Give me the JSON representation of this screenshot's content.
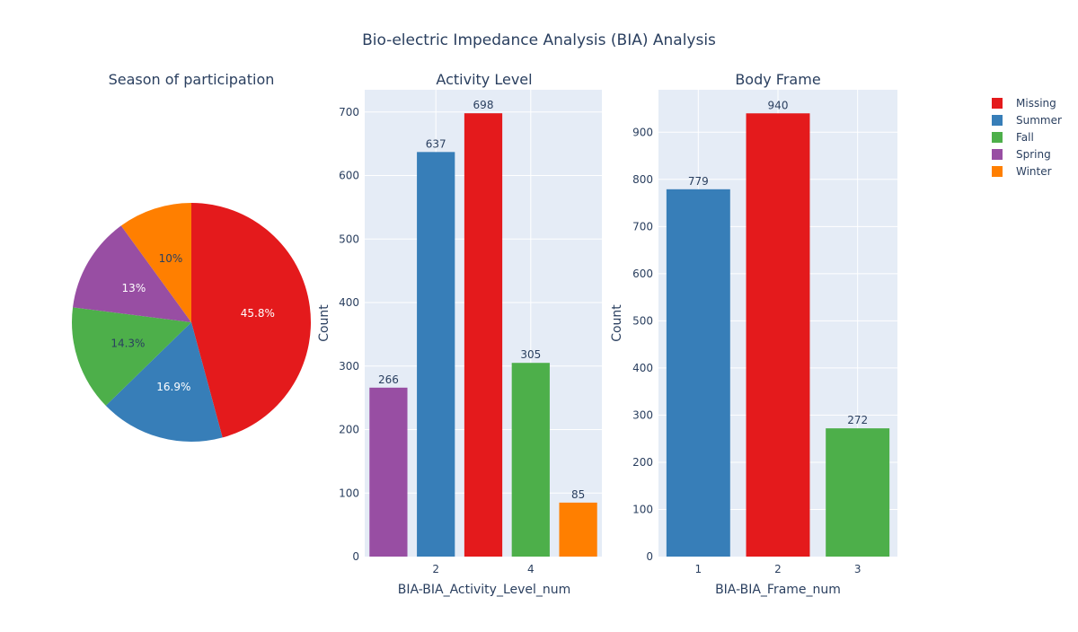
{
  "title": "Bio-electric Impedance Analysis (BIA) Analysis",
  "colors": {
    "Missing": "#e41a1c",
    "Summer": "#377eb8",
    "Fall": "#4daf4a",
    "Spring": "#984ea3",
    "Winter": "#ff7f00",
    "plot_bg": "#e5ecf6",
    "text": "#2a3f5f"
  },
  "legend": {
    "placement": "top-right",
    "items": [
      "Missing",
      "Summer",
      "Fall",
      "Spring",
      "Winter"
    ]
  },
  "chart_data": [
    {
      "type": "pie",
      "title": "Season of participation",
      "labels": [
        "Missing",
        "Summer",
        "Fall",
        "Spring",
        "Winter"
      ],
      "percents": [
        45.8,
        16.9,
        14.3,
        13,
        10
      ],
      "slice_labels": [
        "45.8%",
        "16.9%",
        "14.3%",
        "13%",
        "10%"
      ]
    },
    {
      "type": "bar",
      "title": "Activity Level",
      "xlabel": "BIA-BIA_Activity_Level_num",
      "ylabel": "Count",
      "x": [
        1,
        2,
        3,
        4,
        5
      ],
      "values": [
        266,
        637,
        698,
        305,
        85
      ],
      "series": [
        "Spring",
        "Summer",
        "Missing",
        "Fall",
        "Winter"
      ],
      "x_ticks": [
        2,
        4
      ],
      "y_ticks": [
        0,
        100,
        200,
        300,
        400,
        500,
        600,
        700
      ],
      "ylim": [
        0,
        735
      ],
      "xlim": [
        0.5,
        5.5
      ],
      "grid": true
    },
    {
      "type": "bar",
      "title": "Body Frame",
      "xlabel": "BIA-BIA_Frame_num",
      "ylabel": "Count",
      "x": [
        1,
        2,
        3
      ],
      "values": [
        779,
        940,
        272
      ],
      "series": [
        "Summer",
        "Missing",
        "Fall"
      ],
      "x_ticks": [
        1,
        2,
        3
      ],
      "y_ticks": [
        0,
        100,
        200,
        300,
        400,
        500,
        600,
        700,
        800,
        900
      ],
      "ylim": [
        0,
        990
      ],
      "xlim": [
        0.5,
        3.5
      ],
      "grid": true
    }
  ]
}
